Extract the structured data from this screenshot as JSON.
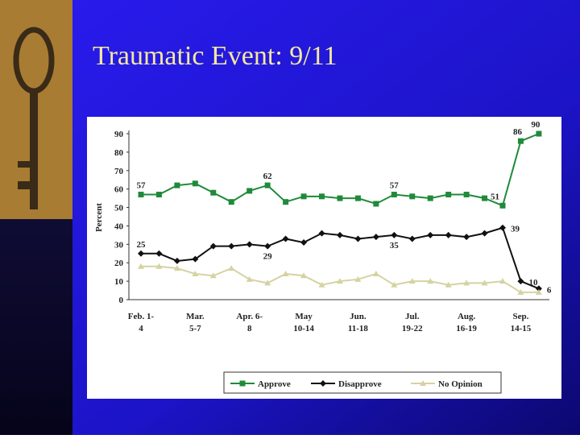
{
  "title": "Traumatic Event: 9/11",
  "chart_data": {
    "type": "line",
    "ylabel": "Percent",
    "categories": [
      [
        "Feb. 1-",
        "4"
      ],
      null,
      null,
      [
        "Mar.",
        "5-7"
      ],
      null,
      null,
      [
        "Apr. 6-",
        "8"
      ],
      null,
      null,
      [
        "May",
        "10-14"
      ],
      null,
      null,
      [
        "Jun.",
        "11-18"
      ],
      null,
      null,
      [
        "Jul.",
        "19-22"
      ],
      null,
      null,
      [
        "Aug.",
        "16-19"
      ],
      null,
      null,
      [
        "Sep.",
        "14-15"
      ],
      null
    ],
    "ylim": [
      0,
      90
    ],
    "yticks": [
      0,
      10,
      20,
      30,
      40,
      50,
      60,
      70,
      80,
      90
    ],
    "legend": "bottom",
    "series": [
      {
        "name": "Approve",
        "color": "#1f8a3a",
        "marker": "square",
        "values": [
          57,
          57,
          62,
          63,
          58,
          53,
          59,
          62,
          53,
          56,
          56,
          55,
          55,
          52,
          57,
          56,
          55,
          57,
          57,
          55,
          51,
          86,
          90
        ],
        "value_labels": [
          "57",
          null,
          null,
          null,
          null,
          null,
          null,
          "62",
          null,
          null,
          null,
          null,
          null,
          null,
          "57",
          null,
          null,
          null,
          null,
          null,
          "51",
          "86",
          "90"
        ]
      },
      {
        "name": "Disapprove",
        "color": "#111111",
        "marker": "diamond",
        "values": [
          25,
          25,
          21,
          22,
          29,
          29,
          30,
          29,
          33,
          31,
          36,
          35,
          33,
          34,
          35,
          33,
          35,
          35,
          34,
          36,
          39,
          10,
          6
        ],
        "value_labels": [
          "25",
          null,
          null,
          null,
          null,
          null,
          null,
          "29",
          null,
          null,
          null,
          null,
          null,
          null,
          "35",
          null,
          null,
          null,
          null,
          null,
          "39",
          "10",
          "6"
        ]
      },
      {
        "name": "No Opinion",
        "color": "#d6d2a2",
        "marker": "triangle",
        "values": [
          18,
          18,
          17,
          14,
          13,
          17,
          11,
          9,
          14,
          13,
          8,
          10,
          11,
          14,
          8,
          10,
          10,
          8,
          9,
          9,
          10,
          4,
          4
        ]
      }
    ]
  }
}
